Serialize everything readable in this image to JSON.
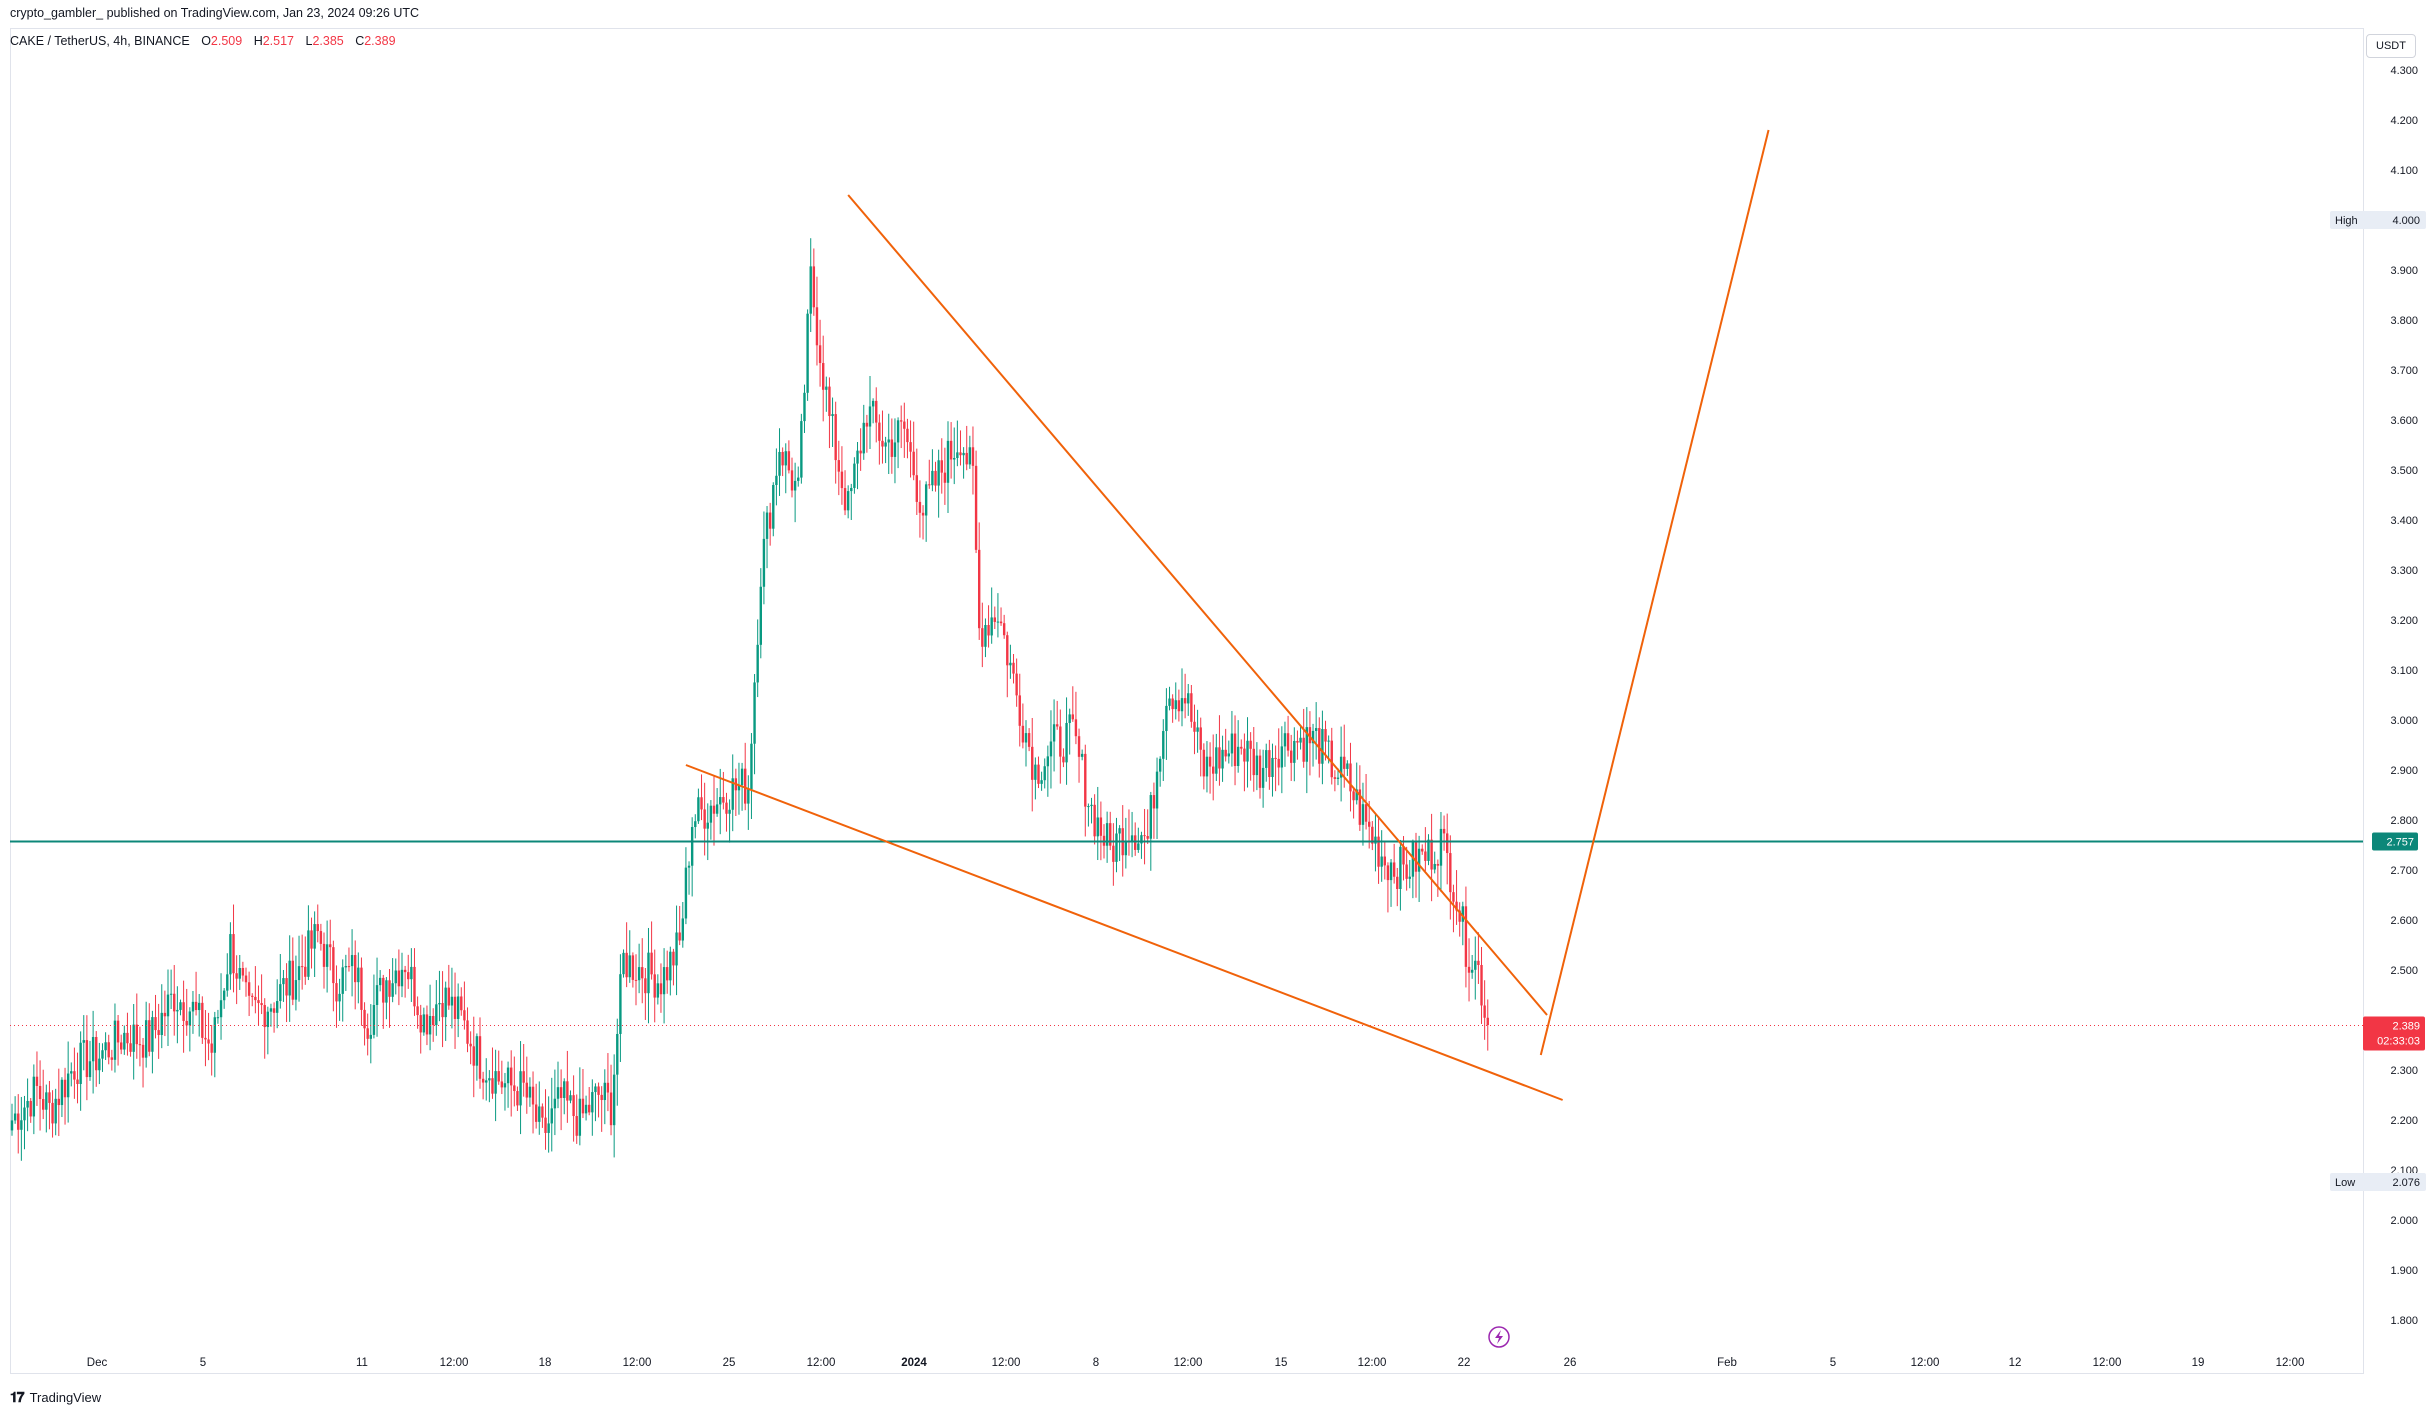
{
  "header": {
    "attribution": "crypto_gambler_ published on TradingView.com, Jan 23, 2024 09:26 UTC"
  },
  "symbol": {
    "name": "CAKE / TetherUS, 4h, BINANCE",
    "open_label": "O",
    "open": "2.509",
    "high_label": "H",
    "high": "2.517",
    "low_label": "L",
    "low": "2.385",
    "close_label": "C",
    "close": "2.389"
  },
  "currency_button": "USDT",
  "footer": {
    "brand": "TradingView"
  },
  "colors": {
    "up": "#089981",
    "down": "#f23645",
    "trendline": "#f0620a",
    "horizontal": "#0c8779",
    "current_price": "#f23645"
  },
  "chart_data": {
    "type": "candlestick",
    "ylim": [
      1.76,
      4.32
    ],
    "y_ticks": [
      "1.800",
      "1.900",
      "2.000",
      "2.100",
      "2.200",
      "2.300",
      "2.400",
      "2.500",
      "2.600",
      "2.700",
      "2.800",
      "2.900",
      "3.000",
      "3.100",
      "3.200",
      "3.300",
      "3.400",
      "3.500",
      "3.600",
      "3.700",
      "3.800",
      "3.900",
      "4.000",
      "4.100",
      "4.200",
      "4.300"
    ],
    "x_ticks": [
      "Dec",
      "5",
      "11",
      "12:00",
      "18",
      "12:00",
      "25",
      "12:00",
      "2024",
      "12:00",
      "8",
      "12:00",
      "15",
      "12:00",
      "22",
      "26",
      "Feb",
      "5",
      "12:00",
      "12",
      "12:00",
      "19",
      "12:00"
    ],
    "high_label": "High",
    "high_value": "4.000",
    "low_label": "Low",
    "low_value": "2.076",
    "horizontal_level": "2.757",
    "current_price": "2.389",
    "countdown": "02:33:03",
    "candle_anchors": [
      {
        "t": 0,
        "p": 2.2
      },
      {
        "t": 8,
        "p": 2.26
      },
      {
        "t": 12,
        "p": 2.22
      },
      {
        "t": 20,
        "p": 2.31
      },
      {
        "t": 28,
        "p": 2.33
      },
      {
        "t": 36,
        "p": 2.37
      },
      {
        "t": 44,
        "p": 2.36
      },
      {
        "t": 52,
        "p": 2.45
      },
      {
        "t": 58,
        "p": 2.42
      },
      {
        "t": 64,
        "p": 2.34
      },
      {
        "t": 70,
        "p": 2.55
      },
      {
        "t": 76,
        "p": 2.41
      },
      {
        "t": 84,
        "p": 2.44
      },
      {
        "t": 92,
        "p": 2.5
      },
      {
        "t": 98,
        "p": 2.57
      },
      {
        "t": 104,
        "p": 2.48
      },
      {
        "t": 110,
        "p": 2.5
      },
      {
        "t": 114,
        "p": 2.4
      },
      {
        "t": 120,
        "p": 2.48
      },
      {
        "t": 126,
        "p": 2.52
      },
      {
        "t": 132,
        "p": 2.4
      },
      {
        "t": 138,
        "p": 2.45
      },
      {
        "t": 144,
        "p": 2.4
      },
      {
        "t": 150,
        "p": 2.32
      },
      {
        "t": 158,
        "p": 2.27
      },
      {
        "t": 164,
        "p": 2.26
      },
      {
        "t": 170,
        "p": 2.17
      },
      {
        "t": 176,
        "p": 2.24
      },
      {
        "t": 182,
        "p": 2.2
      },
      {
        "t": 188,
        "p": 2.25
      },
      {
        "t": 192,
        "p": 2.23
      },
      {
        "t": 196,
        "p": 2.52
      },
      {
        "t": 202,
        "p": 2.5
      },
      {
        "t": 208,
        "p": 2.48
      },
      {
        "t": 214,
        "p": 2.55
      },
      {
        "t": 218,
        "p": 2.8
      },
      {
        "t": 224,
        "p": 2.83
      },
      {
        "t": 230,
        "p": 2.86
      },
      {
        "t": 236,
        "p": 2.87
      },
      {
        "t": 240,
        "p": 3.3
      },
      {
        "t": 246,
        "p": 3.55
      },
      {
        "t": 252,
        "p": 3.45
      },
      {
        "t": 256,
        "p": 3.88
      },
      {
        "t": 262,
        "p": 3.6
      },
      {
        "t": 268,
        "p": 3.42
      },
      {
        "t": 274,
        "p": 3.62
      },
      {
        "t": 280,
        "p": 3.55
      },
      {
        "t": 286,
        "p": 3.58
      },
      {
        "t": 292,
        "p": 3.42
      },
      {
        "t": 298,
        "p": 3.5
      },
      {
        "t": 304,
        "p": 3.57
      },
      {
        "t": 308,
        "p": 3.48
      },
      {
        "t": 310,
        "p": 3.18
      },
      {
        "t": 316,
        "p": 3.22
      },
      {
        "t": 322,
        "p": 3.05
      },
      {
        "t": 328,
        "p": 2.9
      },
      {
        "t": 334,
        "p": 2.95
      },
      {
        "t": 340,
        "p": 2.97
      },
      {
        "t": 346,
        "p": 2.82
      },
      {
        "t": 352,
        "p": 2.74
      },
      {
        "t": 358,
        "p": 2.79
      },
      {
        "t": 364,
        "p": 2.76
      },
      {
        "t": 370,
        "p": 3.06
      },
      {
        "t": 376,
        "p": 3.05
      },
      {
        "t": 382,
        "p": 2.9
      },
      {
        "t": 388,
        "p": 2.93
      },
      {
        "t": 394,
        "p": 2.95
      },
      {
        "t": 400,
        "p": 2.9
      },
      {
        "t": 406,
        "p": 2.95
      },
      {
        "t": 412,
        "p": 2.96
      },
      {
        "t": 418,
        "p": 2.96
      },
      {
        "t": 424,
        "p": 2.9
      },
      {
        "t": 428,
        "p": 2.88
      },
      {
        "t": 434,
        "p": 2.79
      },
      {
        "t": 440,
        "p": 2.72
      },
      {
        "t": 446,
        "p": 2.7
      },
      {
        "t": 450,
        "p": 2.72
      },
      {
        "t": 454,
        "p": 2.73
      },
      {
        "t": 458,
        "p": 2.76
      },
      {
        "t": 462,
        "p": 2.68
      },
      {
        "t": 466,
        "p": 2.55
      },
      {
        "t": 470,
        "p": 2.5
      },
      {
        "t": 473,
        "p": 2.39
      }
    ],
    "drawings": [
      {
        "name": "upper-trendline",
        "t1": 268,
        "p1": 4.05,
        "t2": 492,
        "p2": 2.41
      },
      {
        "name": "lower-trendline",
        "t1": 216,
        "p1": 2.91,
        "t2": 497,
        "p2": 2.24
      },
      {
        "name": "projection-line",
        "t1": 490,
        "p1": 2.33,
        "t2": 563,
        "p2": 4.18
      }
    ]
  }
}
